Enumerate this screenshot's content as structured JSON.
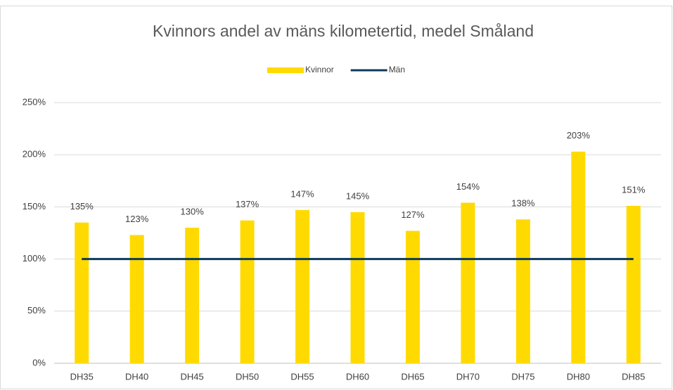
{
  "chart_data": {
    "type": "bar",
    "title": "Kvinnors andel av mäns kilometertid, medel Småland",
    "categories": [
      "DH35",
      "DH40",
      "DH45",
      "DH50",
      "DH55",
      "DH60",
      "DH65",
      "DH70",
      "DH75",
      "DH80",
      "DH85"
    ],
    "series": [
      {
        "name": "Kvinnor",
        "type": "bar",
        "color": "#FFDA00",
        "values": [
          135,
          123,
          130,
          137,
          147,
          145,
          127,
          154,
          138,
          203,
          151
        ],
        "value_labels": [
          "135%",
          "123%",
          "130%",
          "137%",
          "147%",
          "145%",
          "127%",
          "154%",
          "138%",
          "203%",
          "151%"
        ]
      },
      {
        "name": "Män",
        "type": "line",
        "color": "#0D3A5C",
        "values": [
          100,
          100,
          100,
          100,
          100,
          100,
          100,
          100,
          100,
          100,
          100
        ]
      }
    ],
    "ylim": [
      0,
      250
    ],
    "yticks": [
      {
        "value": 0,
        "label": "0%"
      },
      {
        "value": 50,
        "label": "50%"
      },
      {
        "value": 100,
        "label": "100%"
      },
      {
        "value": 150,
        "label": "150%"
      },
      {
        "value": 200,
        "label": "200%"
      },
      {
        "value": 250,
        "label": "250%"
      }
    ],
    "grid": true,
    "legend": "top"
  }
}
